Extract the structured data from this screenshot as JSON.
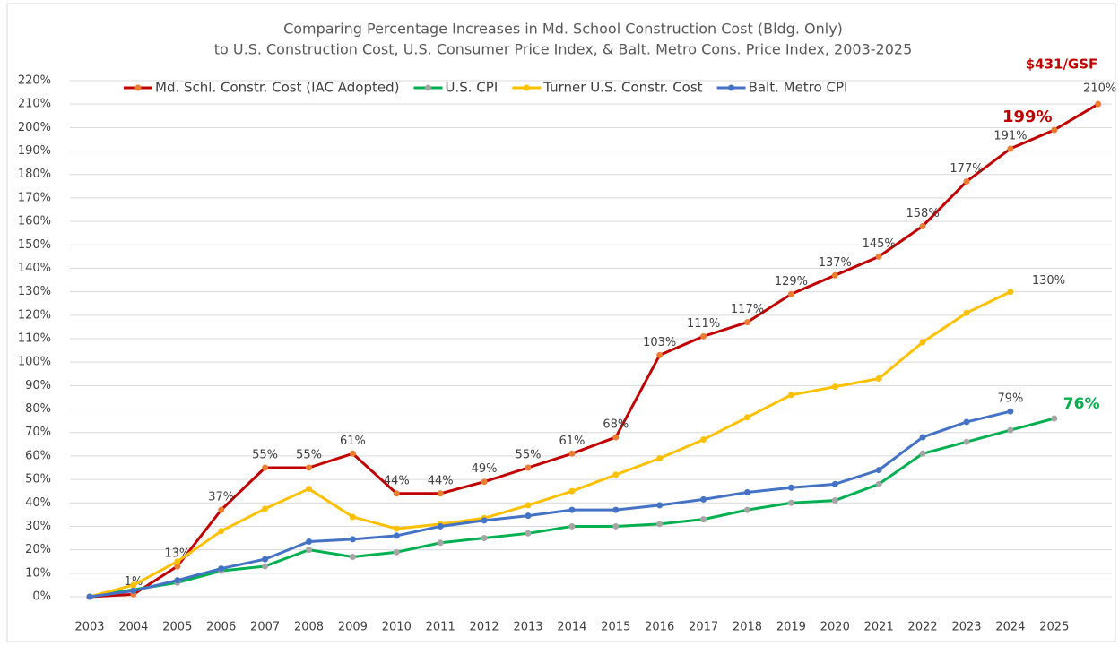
{
  "chart_data": {
    "type": "line",
    "title": [
      "Comparing Percentage Increases in Md. School Construction Cost (Bldg. Only)",
      "to U.S. Construction Cost, U.S. Consumer Price Index, & Balt. Metro Cons. Price Index, 2003-2025"
    ],
    "annotation": "$431/GSF",
    "categories": [
      "2003",
      "2004",
      "2005",
      "2006",
      "2007",
      "2008",
      "2009",
      "2010",
      "2011",
      "2012",
      "2013",
      "2014",
      "2015",
      "2016",
      "2017",
      "2018",
      "2019",
      "2020",
      "2021",
      "2022",
      "2023",
      "2024",
      "2025",
      null
    ],
    "ylim": [
      0,
      220
    ],
    "yticks": [
      {
        "value": 0,
        "label": "0%"
      },
      {
        "value": 10,
        "label": "10%"
      },
      {
        "value": 20,
        "label": "20%"
      },
      {
        "value": 30,
        "label": "30%"
      },
      {
        "value": 40,
        "label": "40%"
      },
      {
        "value": 50,
        "label": "50%"
      },
      {
        "value": 60,
        "label": "60%"
      },
      {
        "value": 70,
        "label": "70%"
      },
      {
        "value": 80,
        "label": "80%"
      },
      {
        "value": 90,
        "label": "90%"
      },
      {
        "value": 100,
        "label": "100%"
      },
      {
        "value": 110,
        "label": "110%"
      },
      {
        "value": 120,
        "label": "120%"
      },
      {
        "value": 130,
        "label": "130%"
      },
      {
        "value": 140,
        "label": "140%"
      },
      {
        "value": 150,
        "label": "150%"
      },
      {
        "value": 160,
        "label": "160%"
      },
      {
        "value": 170,
        "label": "170%"
      },
      {
        "value": 180,
        "label": "180%"
      },
      {
        "value": 190,
        "label": "190%"
      },
      {
        "value": 200,
        "label": "200%"
      },
      {
        "value": 210,
        "label": "210%"
      },
      {
        "value": 220,
        "label": "220%"
      }
    ],
    "grid": true,
    "legend": "top",
    "series": [
      {
        "name": "Md. Schl. Constr. Cost (IAC Adopted)",
        "color": "#c00000",
        "marker_color": "#ed7d31",
        "values": [
          0,
          1,
          13,
          37,
          55,
          55,
          61,
          44,
          44,
          49,
          55,
          61,
          68,
          103,
          111,
          117,
          129,
          137,
          145,
          158,
          177,
          191,
          199,
          210
        ],
        "value_labels": [
          null,
          "1%",
          "13%",
          "37%",
          "55%",
          "55%",
          "61%",
          "44%",
          "44%",
          "49%",
          "55%",
          "61%",
          "68%",
          "103%",
          "111%",
          "117%",
          "129%",
          "137%",
          "145%",
          "158%",
          "177%",
          "191%",
          "199%",
          "210%"
        ]
      },
      {
        "name": "U.S. CPI",
        "color": "#00b050",
        "marker_color": "#a5a5a5",
        "values": [
          0,
          3,
          6,
          11,
          13,
          20,
          17,
          19,
          23,
          25,
          27,
          30,
          30,
          31,
          33,
          37,
          40,
          41,
          48,
          61,
          66,
          71,
          76,
          null
        ],
        "value_labels": [
          null,
          null,
          null,
          null,
          null,
          null,
          null,
          null,
          null,
          null,
          null,
          null,
          null,
          null,
          null,
          null,
          null,
          null,
          null,
          null,
          null,
          null,
          "76%",
          null
        ]
      },
      {
        "name": "Turner U.S. Constr. Cost",
        "color": "#ffc000",
        "marker_color": "#ffc000",
        "values": [
          0,
          5,
          15,
          28,
          37.5,
          46,
          34,
          29,
          31,
          33.5,
          39,
          45,
          52,
          59,
          67,
          76.5,
          86,
          89.5,
          93,
          108.5,
          121,
          130,
          null,
          null
        ],
        "value_labels": [
          null,
          null,
          null,
          null,
          null,
          null,
          null,
          null,
          null,
          null,
          null,
          null,
          null,
          null,
          null,
          null,
          null,
          null,
          null,
          null,
          null,
          "130%",
          null,
          null
        ]
      },
      {
        "name": "Balt. Metro CPI",
        "color": "#4472c4",
        "marker_color": "#4472c4",
        "values": [
          0,
          2.5,
          7,
          12,
          16,
          23.5,
          24.5,
          26,
          30,
          32.5,
          34.5,
          37,
          37,
          39,
          41.5,
          44.5,
          46.5,
          48,
          54,
          68,
          74.5,
          79,
          null,
          null
        ],
        "value_labels": [
          null,
          null,
          null,
          null,
          null,
          null,
          null,
          null,
          null,
          null,
          null,
          null,
          null,
          null,
          null,
          null,
          null,
          null,
          null,
          null,
          null,
          "79%",
          null,
          null
        ]
      }
    ]
  }
}
